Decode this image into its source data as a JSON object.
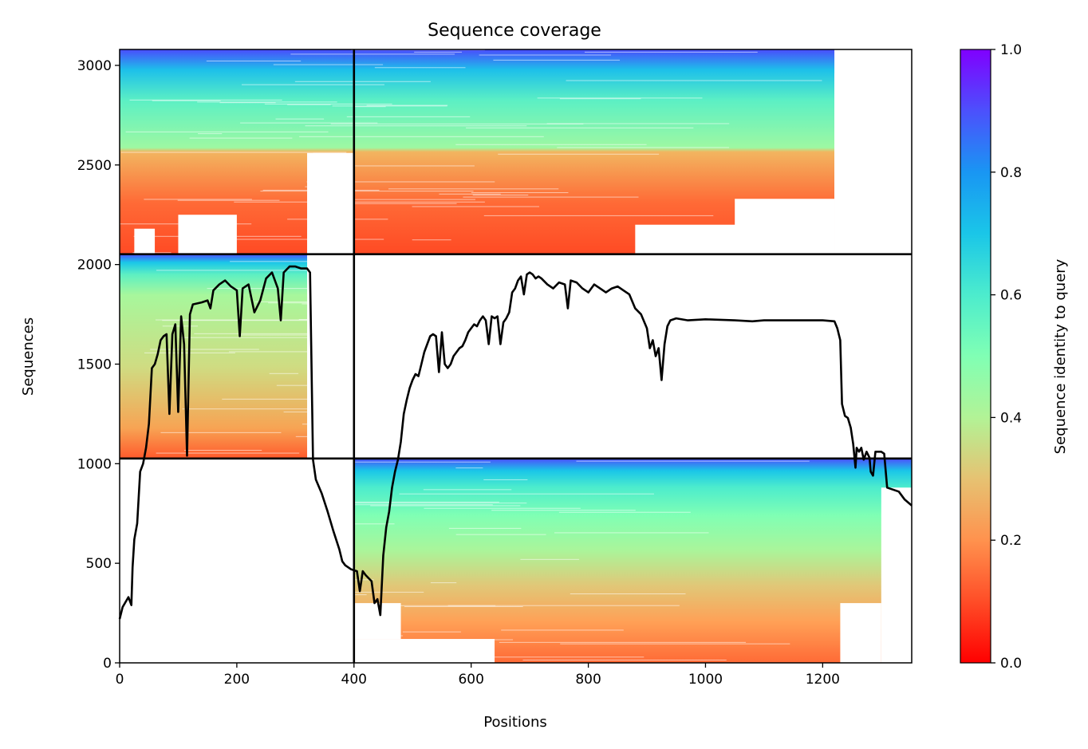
{
  "chart_data": {
    "type": "heatmap",
    "title": "Sequence coverage",
    "xlabel": "Positions",
    "ylabel": "Sequences",
    "xlim": [
      0,
      1352
    ],
    "ylim": [
      0,
      3080
    ],
    "xticks": [
      0,
      200,
      400,
      600,
      800,
      1000,
      1200
    ],
    "yticks": [
      0,
      500,
      1000,
      1500,
      2000,
      2500,
      3000
    ],
    "colorbar": {
      "label": "Sequence identity to query",
      "range": [
        0,
        1
      ],
      "ticks": [
        "0.0",
        "0.2",
        "0.4",
        "0.6",
        "0.8",
        "1.0"
      ],
      "colormap": "rainbow"
    },
    "blocks": [
      {
        "x": [
          0,
          400
        ],
        "y": [
          2052,
          3080
        ],
        "coverage": "x 0–320 full, to 400 partial"
      },
      {
        "x": [
          400,
          1352
        ],
        "y": [
          2052,
          3080
        ],
        "coverage": "x 400–1220 dense, sparse beyond"
      },
      {
        "x": [
          0,
          400
        ],
        "y": [
          1026,
          2052
        ],
        "coverage": "x 0–320 dense"
      },
      {
        "x": [
          400,
          1352
        ],
        "y": [
          1026,
          2052
        ],
        "coverage": "empty"
      },
      {
        "x": [
          400,
          1352
        ],
        "y": [
          0,
          1026
        ],
        "coverage": "x 400–1220 dense, to 1352 near top"
      }
    ],
    "block_dividers": {
      "x": [
        400
      ],
      "y": [
        1026,
        2052
      ]
    },
    "series": [
      {
        "type": "line",
        "color": "#000000",
        "points": [
          [
            0,
            220
          ],
          [
            5,
            280
          ],
          [
            15,
            330
          ],
          [
            20,
            290
          ],
          [
            22,
            480
          ],
          [
            25,
            620
          ],
          [
            30,
            700
          ],
          [
            35,
            960
          ],
          [
            40,
            1000
          ],
          [
            45,
            1080
          ],
          [
            50,
            1200
          ],
          [
            55,
            1480
          ],
          [
            60,
            1500
          ],
          [
            65,
            1550
          ],
          [
            70,
            1620
          ],
          [
            75,
            1640
          ],
          [
            80,
            1650
          ],
          [
            85,
            1250
          ],
          [
            90,
            1650
          ],
          [
            95,
            1700
          ],
          [
            100,
            1260
          ],
          [
            105,
            1740
          ],
          [
            110,
            1600
          ],
          [
            115,
            1040
          ],
          [
            120,
            1750
          ],
          [
            125,
            1800
          ],
          [
            140,
            1810
          ],
          [
            150,
            1820
          ],
          [
            155,
            1780
          ],
          [
            160,
            1870
          ],
          [
            170,
            1900
          ],
          [
            180,
            1920
          ],
          [
            190,
            1890
          ],
          [
            200,
            1870
          ],
          [
            205,
            1640
          ],
          [
            210,
            1880
          ],
          [
            220,
            1900
          ],
          [
            230,
            1760
          ],
          [
            240,
            1820
          ],
          [
            250,
            1930
          ],
          [
            260,
            1960
          ],
          [
            270,
            1880
          ],
          [
            275,
            1720
          ],
          [
            280,
            1960
          ],
          [
            290,
            1990
          ],
          [
            300,
            1990
          ],
          [
            310,
            1980
          ],
          [
            320,
            1980
          ],
          [
            325,
            1960
          ],
          [
            330,
            1020
          ],
          [
            335,
            920
          ],
          [
            345,
            850
          ],
          [
            355,
            760
          ],
          [
            365,
            660
          ],
          [
            375,
            570
          ],
          [
            380,
            510
          ],
          [
            385,
            490
          ],
          [
            395,
            470
          ],
          [
            405,
            460
          ],
          [
            410,
            360
          ],
          [
            415,
            460
          ],
          [
            420,
            440
          ],
          [
            430,
            410
          ],
          [
            435,
            300
          ],
          [
            440,
            320
          ],
          [
            445,
            240
          ],
          [
            450,
            540
          ],
          [
            455,
            680
          ],
          [
            460,
            760
          ],
          [
            465,
            880
          ],
          [
            470,
            960
          ],
          [
            475,
            1020
          ],
          [
            480,
            1110
          ],
          [
            485,
            1250
          ],
          [
            490,
            1320
          ],
          [
            495,
            1380
          ],
          [
            500,
            1420
          ],
          [
            505,
            1450
          ],
          [
            510,
            1440
          ],
          [
            515,
            1500
          ],
          [
            520,
            1560
          ],
          [
            525,
            1600
          ],
          [
            530,
            1640
          ],
          [
            535,
            1650
          ],
          [
            540,
            1640
          ],
          [
            545,
            1460
          ],
          [
            550,
            1660
          ],
          [
            555,
            1500
          ],
          [
            560,
            1480
          ],
          [
            565,
            1500
          ],
          [
            570,
            1540
          ],
          [
            575,
            1560
          ],
          [
            580,
            1580
          ],
          [
            585,
            1590
          ],
          [
            590,
            1620
          ],
          [
            595,
            1660
          ],
          [
            600,
            1680
          ],
          [
            605,
            1700
          ],
          [
            610,
            1690
          ],
          [
            615,
            1720
          ],
          [
            620,
            1740
          ],
          [
            625,
            1720
          ],
          [
            630,
            1600
          ],
          [
            635,
            1740
          ],
          [
            640,
            1730
          ],
          [
            645,
            1740
          ],
          [
            650,
            1600
          ],
          [
            655,
            1710
          ],
          [
            660,
            1730
          ],
          [
            665,
            1760
          ],
          [
            670,
            1860
          ],
          [
            675,
            1880
          ],
          [
            680,
            1920
          ],
          [
            685,
            1940
          ],
          [
            690,
            1850
          ],
          [
            695,
            1950
          ],
          [
            700,
            1960
          ],
          [
            705,
            1950
          ],
          [
            710,
            1930
          ],
          [
            715,
            1940
          ],
          [
            720,
            1930
          ],
          [
            730,
            1900
          ],
          [
            740,
            1880
          ],
          [
            750,
            1910
          ],
          [
            760,
            1900
          ],
          [
            765,
            1780
          ],
          [
            770,
            1920
          ],
          [
            780,
            1910
          ],
          [
            790,
            1880
          ],
          [
            800,
            1860
          ],
          [
            810,
            1900
          ],
          [
            820,
            1880
          ],
          [
            830,
            1860
          ],
          [
            840,
            1880
          ],
          [
            850,
            1890
          ],
          [
            860,
            1870
          ],
          [
            870,
            1850
          ],
          [
            880,
            1780
          ],
          [
            890,
            1750
          ],
          [
            900,
            1680
          ],
          [
            905,
            1580
          ],
          [
            910,
            1620
          ],
          [
            915,
            1540
          ],
          [
            920,
            1580
          ],
          [
            925,
            1420
          ],
          [
            930,
            1600
          ],
          [
            935,
            1690
          ],
          [
            940,
            1720
          ],
          [
            950,
            1730
          ],
          [
            970,
            1720
          ],
          [
            1000,
            1725
          ],
          [
            1050,
            1720
          ],
          [
            1080,
            1715
          ],
          [
            1100,
            1720
          ],
          [
            1150,
            1720
          ],
          [
            1200,
            1720
          ],
          [
            1220,
            1715
          ],
          [
            1225,
            1680
          ],
          [
            1230,
            1620
          ],
          [
            1233,
            1300
          ],
          [
            1238,
            1240
          ],
          [
            1243,
            1230
          ],
          [
            1248,
            1180
          ],
          [
            1252,
            1100
          ],
          [
            1256,
            980
          ],
          [
            1258,
            1080
          ],
          [
            1262,
            1060
          ],
          [
            1266,
            1080
          ],
          [
            1270,
            1020
          ],
          [
            1275,
            1060
          ],
          [
            1280,
            1030
          ],
          [
            1282,
            960
          ],
          [
            1286,
            940
          ],
          [
            1290,
            1060
          ],
          [
            1295,
            1060
          ],
          [
            1300,
            1060
          ],
          [
            1305,
            1050
          ],
          [
            1310,
            880
          ],
          [
            1320,
            870
          ],
          [
            1330,
            860
          ],
          [
            1340,
            820
          ],
          [
            1352,
            790
          ]
        ]
      }
    ]
  }
}
